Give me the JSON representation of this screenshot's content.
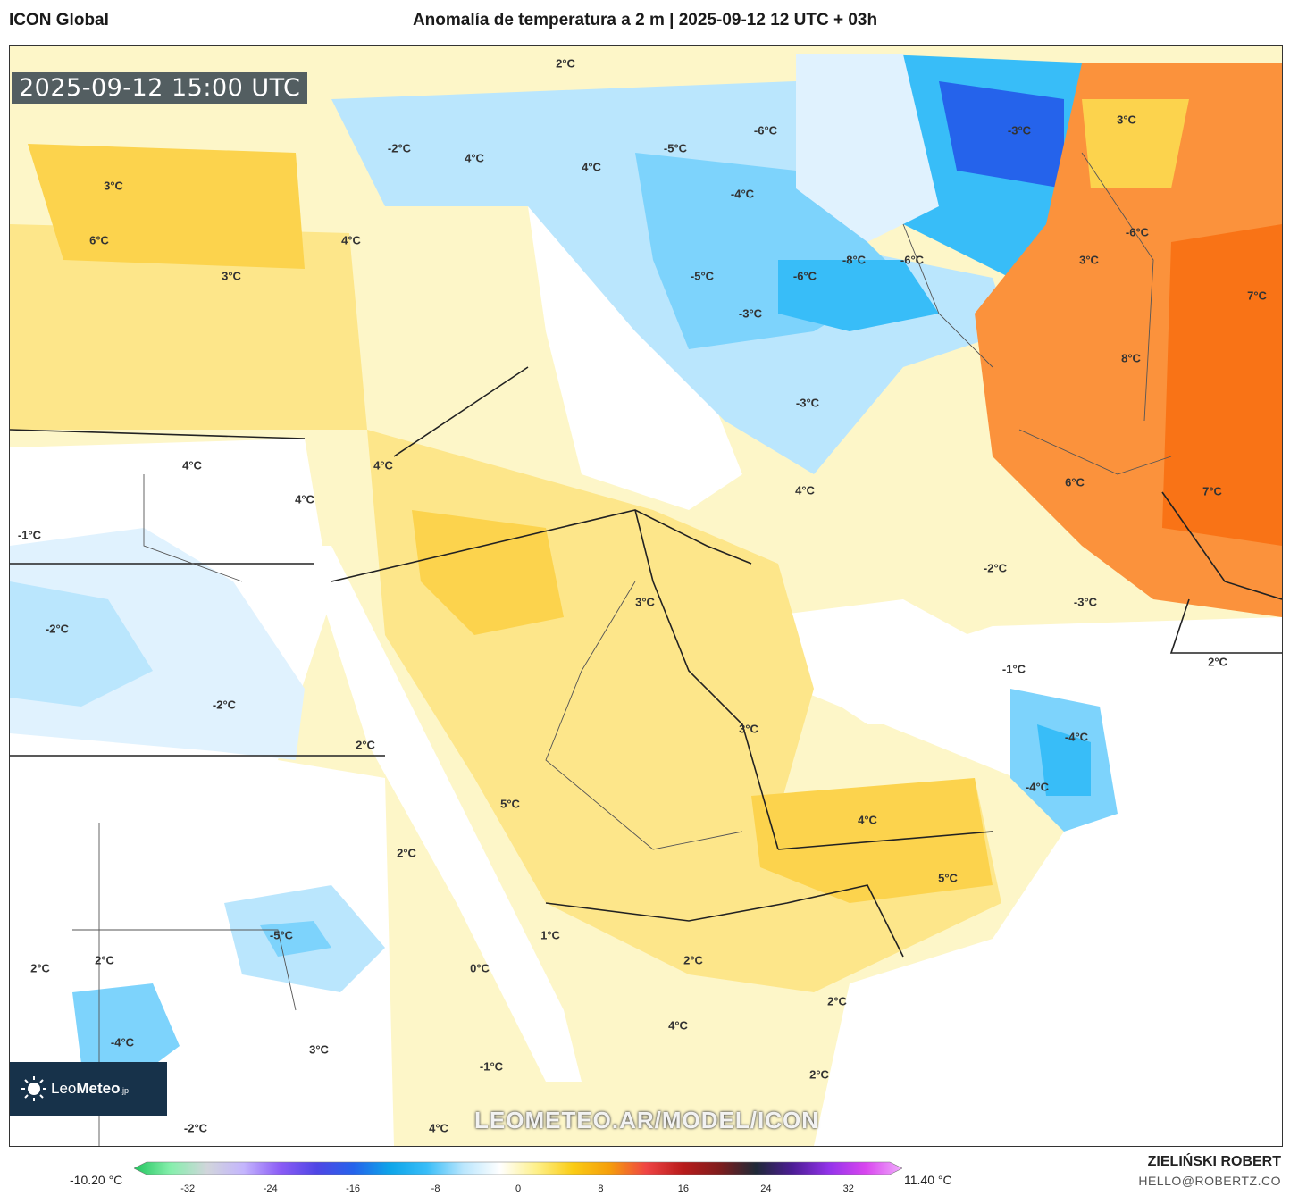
{
  "header": {
    "model": "ICON Global",
    "title": "Anomalía de temperatura a 2 m | 2025-09-12 12 UTC + 03h"
  },
  "map": {
    "valid_time": "2025-09-12 15:00 UTC",
    "watermark": "LEOMETEO.AR/MODEL/ICON",
    "logo_text_light": "Leo",
    "logo_text_bold": "Meteo",
    "logo_suffix": ".jp",
    "labels": [
      "2°C",
      "-2°C",
      "4°C",
      "3°C",
      "-5°C",
      "-6°C",
      "4°C",
      "-4°C",
      "-3°C",
      "3°C",
      "6°C",
      "-6°C",
      "4°C",
      "-6°C",
      "3°C",
      "-8°C",
      "-6°C",
      "-5°C",
      "7°C",
      "3°C",
      "-3°C",
      "-3°C",
      "8°C",
      "4°C",
      "-1°C",
      "4°C",
      "4°C",
      "4°C",
      "6°C",
      "7°C",
      "-2°C",
      "-2°C",
      "3°C",
      "-3°C",
      "-2°C",
      "-1°C",
      "2°C",
      "-4°C",
      "3°C",
      "-4°C",
      "2°C",
      "5°C",
      "4°C",
      "2°C",
      "5°C",
      "-5°C",
      "1°C",
      "2°C",
      "2°C",
      "0°C",
      "2°C",
      "2°C",
      "-4°C",
      "3°C",
      "4°C",
      "-1°C",
      "2°C",
      "-2°C",
      "4°C"
    ],
    "colors": {
      "warm_light": "#fdf6c8",
      "warm": "#fde68a",
      "warm_strong": "#fcd34d",
      "orange": "#fb923c",
      "red_orange": "#f97316",
      "neutral": "#ffffff",
      "cool_light": "#e0f2fe",
      "cool": "#7dd3fc",
      "cool_strong": "#38bdf8",
      "blue": "#0ea5e9",
      "deep_blue": "#2563eb"
    }
  },
  "colorbar": {
    "min_label": "-10.20 °C",
    "max_label": "11.40 °C",
    "ticks": [
      "-32",
      "-24",
      "-16",
      "-8",
      "0",
      "8",
      "16",
      "24",
      "32"
    ],
    "tick_values": [
      -32,
      -24,
      -16,
      -8,
      0,
      8,
      16,
      24,
      32
    ],
    "range": [
      -36,
      36
    ],
    "stops": [
      "#22c55e",
      "#86efac",
      "#d1d5db",
      "#c4b5fd",
      "#8b5cf6",
      "#4f46e5",
      "#2563eb",
      "#0ea5e9",
      "#38bdf8",
      "#bae6fd",
      "#ffffff",
      "#fef08a",
      "#facc15",
      "#f59e0b",
      "#ef4444",
      "#b91c1c",
      "#7f1d1d",
      "#1f2937",
      "#4c1d95",
      "#9333ea",
      "#d946ef",
      "#f0abfc"
    ]
  },
  "footer": {
    "author": "ZIELIŃSKI ROBERT",
    "email": "HELLO@ROBERTZ.CO"
  }
}
